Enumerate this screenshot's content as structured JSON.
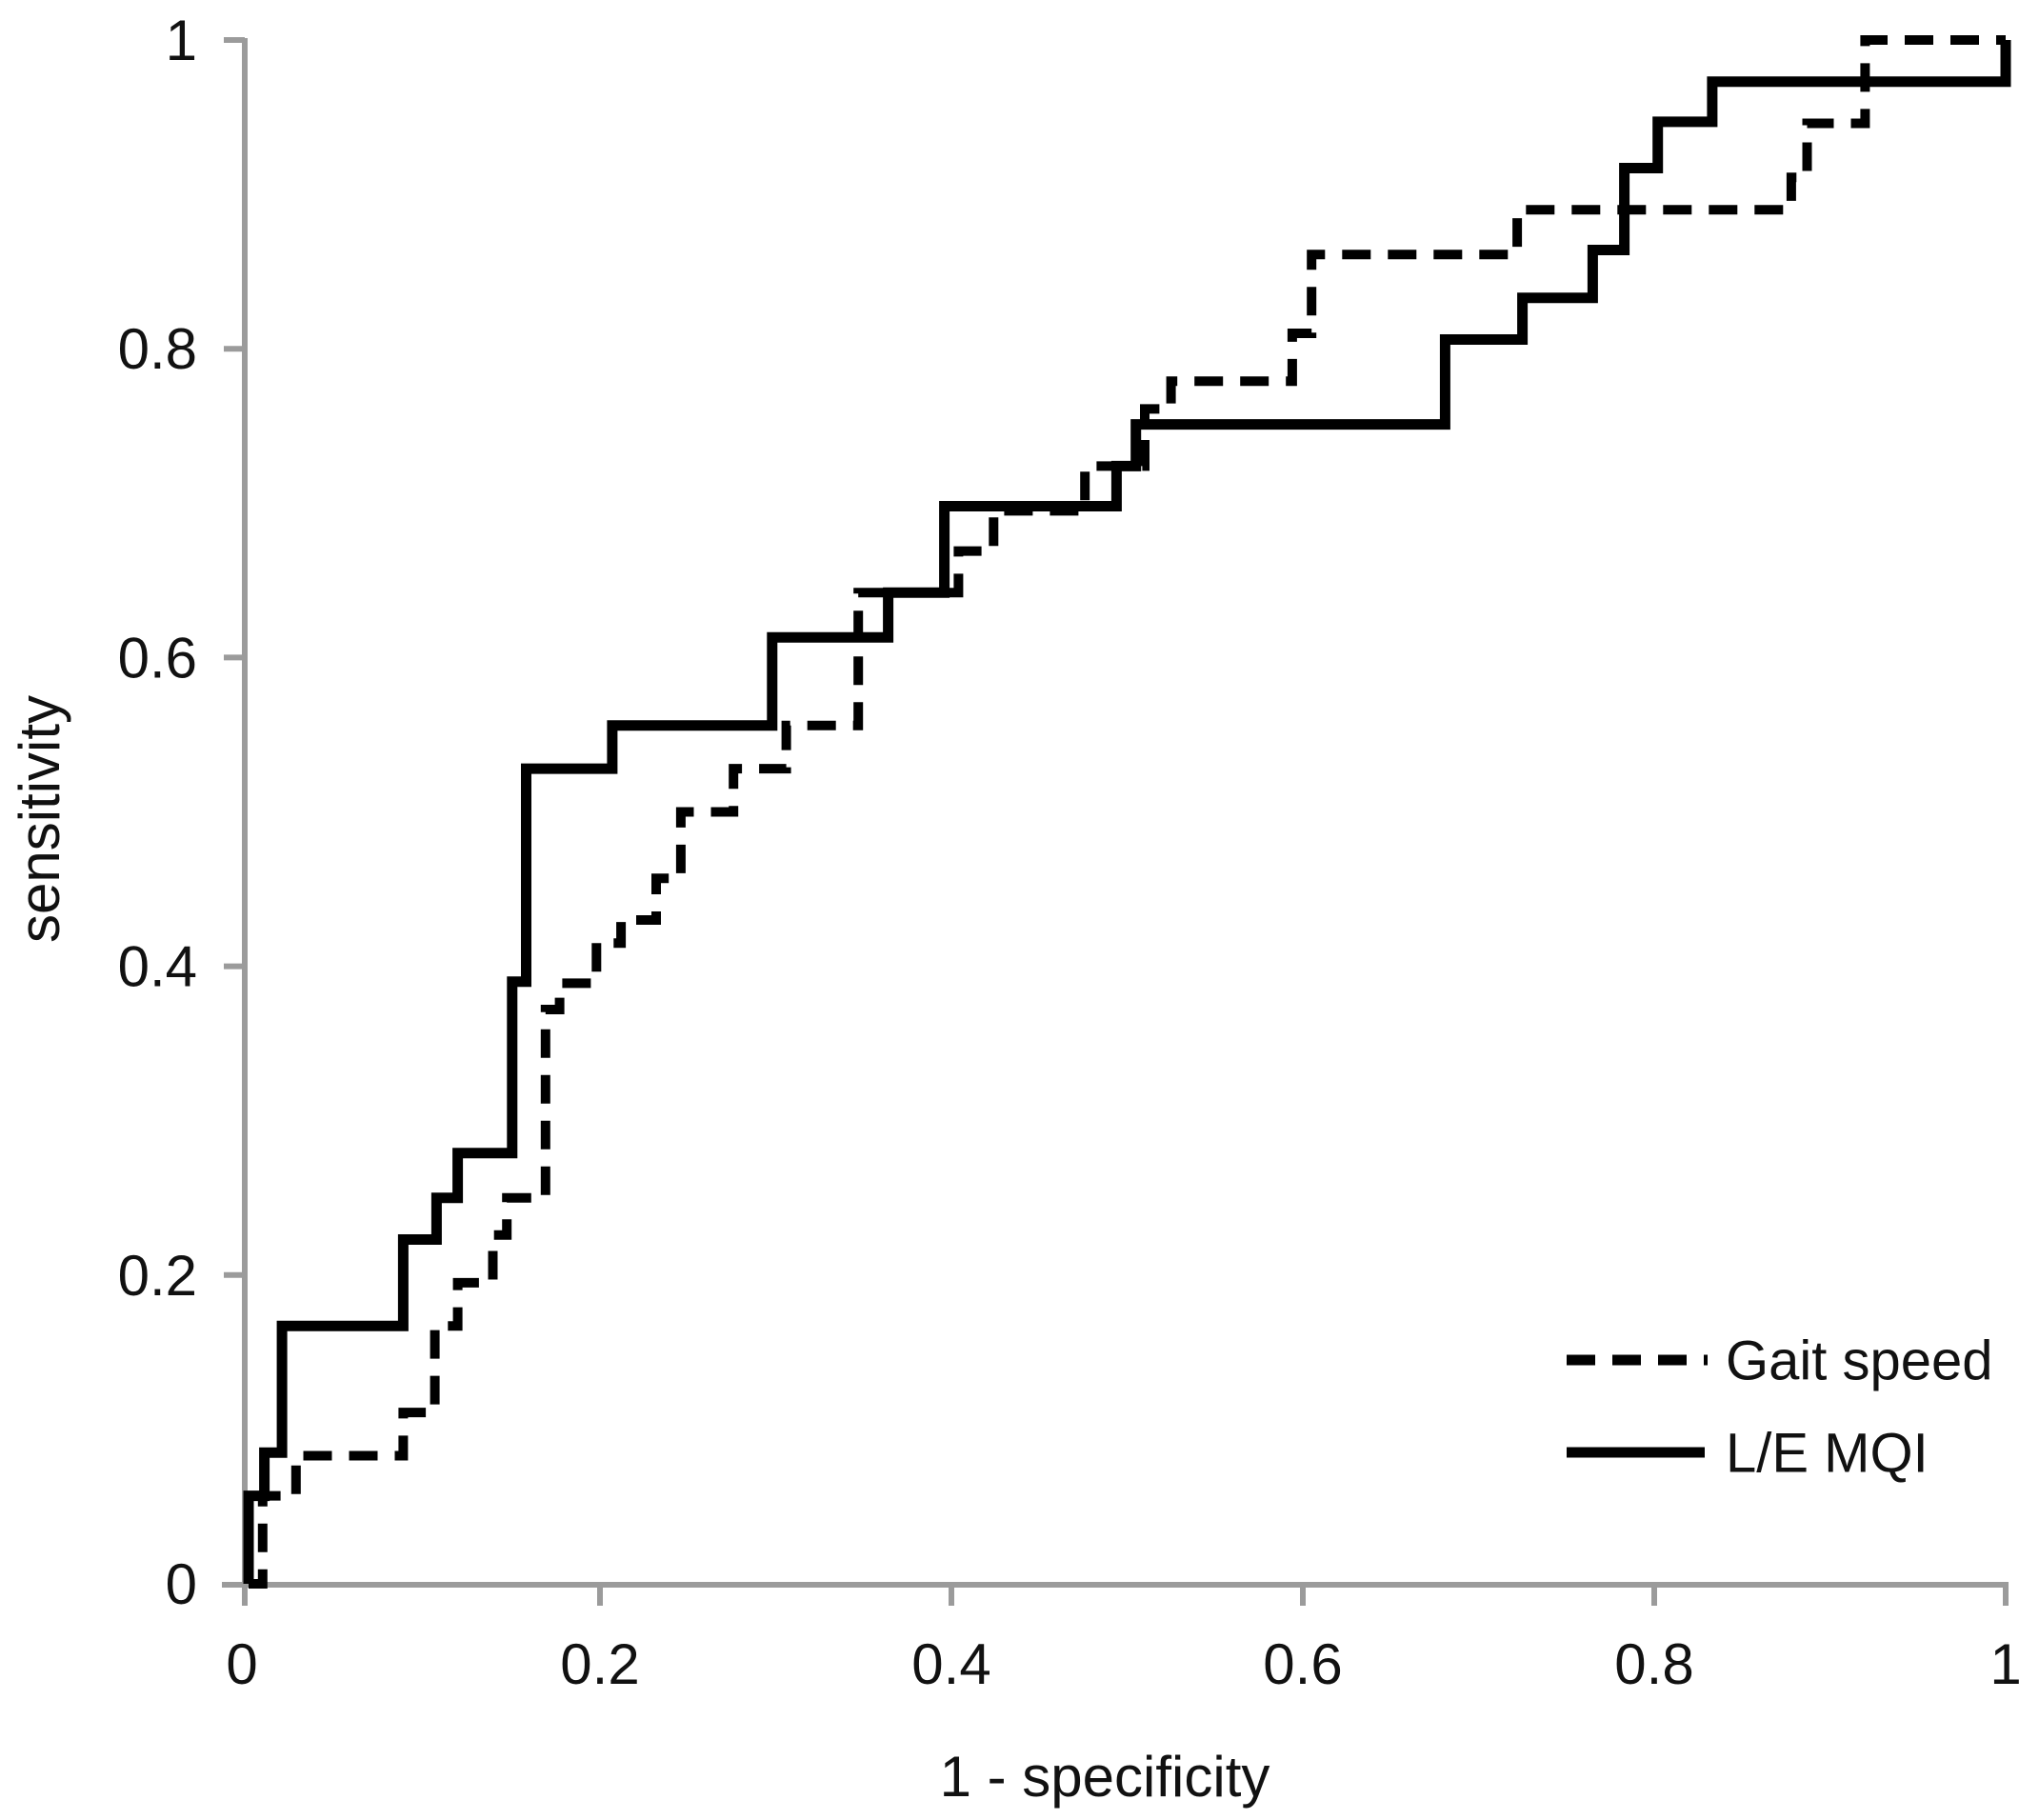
{
  "figure": {
    "background": "#ffffff",
    "text_color": "#111111",
    "axis_color": "#9b9b9b",
    "curve_color": "#000000"
  },
  "chart_data": {
    "type": "line",
    "subtype": "roc-step-curves",
    "title": "",
    "xlabel": "1 - specificity",
    "ylabel": "sensitivity",
    "xlim": [
      0,
      1
    ],
    "ylim": [
      0,
      1
    ],
    "grid": false,
    "legend_position": "lower-right",
    "x_ticks": [
      0,
      0.2,
      0.4,
      0.6,
      0.8,
      1
    ],
    "x_tick_labels": [
      "0",
      "0.2",
      "0.4",
      "0.6",
      "0.8",
      "1"
    ],
    "y_ticks": [
      0,
      0.2,
      0.4,
      0.6,
      0.8,
      1
    ],
    "y_tick_labels": [
      "0",
      "0.2",
      "0.4",
      "0.6",
      "0.8",
      "1"
    ],
    "series": [
      {
        "name": "Gait speed",
        "line_style": "dashed",
        "color": "#000000",
        "points": [
          [
            0,
            0
          ],
          [
            0.008,
            0
          ],
          [
            0.008,
            0.057
          ],
          [
            0.027,
            0.057
          ],
          [
            0.027,
            0.083
          ],
          [
            0.088,
            0.083
          ],
          [
            0.088,
            0.111
          ],
          [
            0.106,
            0.111
          ],
          [
            0.106,
            0.167
          ],
          [
            0.119,
            0.167
          ],
          [
            0.119,
            0.195
          ],
          [
            0.139,
            0.195
          ],
          [
            0.139,
            0.226
          ],
          [
            0.147,
            0.226
          ],
          [
            0.147,
            0.25
          ],
          [
            0.169,
            0.25
          ],
          [
            0.169,
            0.372
          ],
          [
            0.177,
            0.372
          ],
          [
            0.177,
            0.389
          ],
          [
            0.198,
            0.389
          ],
          [
            0.198,
            0.415
          ],
          [
            0.212,
            0.415
          ],
          [
            0.212,
            0.43
          ],
          [
            0.232,
            0.43
          ],
          [
            0.232,
            0.457
          ],
          [
            0.246,
            0.457
          ],
          [
            0.246,
            0.5
          ],
          [
            0.276,
            0.5
          ],
          [
            0.276,
            0.528
          ],
          [
            0.306,
            0.528
          ],
          [
            0.306,
            0.556
          ],
          [
            0.347,
            0.556
          ],
          [
            0.347,
            0.642
          ],
          [
            0.404,
            0.642
          ],
          [
            0.404,
            0.669
          ],
          [
            0.424,
            0.669
          ],
          [
            0.424,
            0.695
          ],
          [
            0.476,
            0.695
          ],
          [
            0.476,
            0.724
          ],
          [
            0.51,
            0.724
          ],
          [
            0.51,
            0.761
          ],
          [
            0.525,
            0.761
          ],
          [
            0.525,
            0.779
          ],
          [
            0.594,
            0.779
          ],
          [
            0.594,
            0.81
          ],
          [
            0.605,
            0.81
          ],
          [
            0.605,
            0.861
          ],
          [
            0.722,
            0.861
          ],
          [
            0.722,
            0.89
          ],
          [
            0.878,
            0.89
          ],
          [
            0.878,
            0.911
          ],
          [
            0.887,
            0.911
          ],
          [
            0.887,
            0.946
          ],
          [
            0.92,
            0.946
          ],
          [
            0.92,
            1
          ],
          [
            1,
            1
          ]
        ]
      },
      {
        "name": "L/E MQI",
        "line_style": "solid",
        "color": "#000000",
        "points": [
          [
            0,
            0
          ],
          [
            0,
            0.057
          ],
          [
            0.009,
            0.057
          ],
          [
            0.009,
            0.085
          ],
          [
            0.019,
            0.085
          ],
          [
            0.019,
            0.167
          ],
          [
            0.088,
            0.167
          ],
          [
            0.088,
            0.223
          ],
          [
            0.107,
            0.223
          ],
          [
            0.107,
            0.25
          ],
          [
            0.119,
            0.25
          ],
          [
            0.119,
            0.279
          ],
          [
            0.15,
            0.279
          ],
          [
            0.15,
            0.39
          ],
          [
            0.158,
            0.39
          ],
          [
            0.158,
            0.528
          ],
          [
            0.207,
            0.528
          ],
          [
            0.207,
            0.556
          ],
          [
            0.298,
            0.556
          ],
          [
            0.298,
            0.613
          ],
          [
            0.364,
            0.613
          ],
          [
            0.364,
            0.642
          ],
          [
            0.396,
            0.642
          ],
          [
            0.396,
            0.698
          ],
          [
            0.494,
            0.698
          ],
          [
            0.494,
            0.724
          ],
          [
            0.505,
            0.724
          ],
          [
            0.505,
            0.751
          ],
          [
            0.681,
            0.751
          ],
          [
            0.681,
            0.806
          ],
          [
            0.725,
            0.806
          ],
          [
            0.725,
            0.833
          ],
          [
            0.765,
            0.833
          ],
          [
            0.765,
            0.864
          ],
          [
            0.783,
            0.864
          ],
          [
            0.783,
            0.917
          ],
          [
            0.802,
            0.917
          ],
          [
            0.802,
            0.947
          ],
          [
            0.833,
            0.947
          ],
          [
            0.833,
            0.973
          ],
          [
            1,
            0.973
          ],
          [
            1,
            1
          ]
        ]
      }
    ]
  }
}
